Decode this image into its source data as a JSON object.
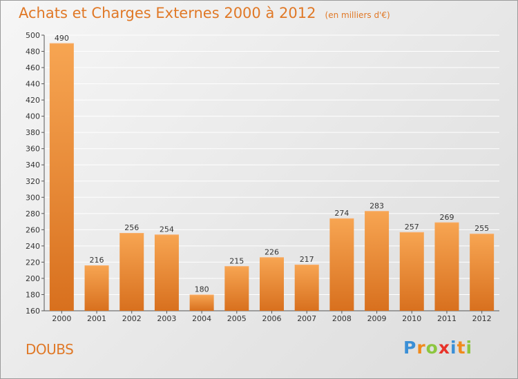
{
  "chart_data": {
    "type": "bar",
    "title": "Achats et Charges Externes 2000 à 2012",
    "subtitle": "(en milliers d'€)",
    "categories": [
      "2000",
      "2001",
      "2002",
      "2003",
      "2004",
      "2005",
      "2006",
      "2007",
      "2008",
      "2009",
      "2010",
      "2011",
      "2012"
    ],
    "values": [
      490,
      216,
      256,
      254,
      180,
      215,
      226,
      217,
      274,
      283,
      257,
      269,
      255
    ],
    "ylim": [
      160,
      500
    ],
    "yticks": [
      160,
      180,
      200,
      220,
      240,
      260,
      280,
      300,
      320,
      340,
      360,
      380,
      400,
      420,
      440,
      460,
      480,
      500
    ],
    "grid": true,
    "legend": "none",
    "bar_color_top": "#f7a552",
    "bar_color_bottom": "#d8701e"
  },
  "region_label": "DOUBS",
  "logo": {
    "letters": [
      "P",
      "r",
      "o",
      "x",
      "i",
      "t",
      "i"
    ],
    "colors": [
      "#3a8fd6",
      "#f08a1c",
      "#8cc63f",
      "#e8332a",
      "#3a8fd6",
      "#f08a1c",
      "#8cc63f"
    ]
  },
  "colors": {
    "accent": "#e07826",
    "grid": "#ffffff",
    "axis_text": "#333333"
  }
}
